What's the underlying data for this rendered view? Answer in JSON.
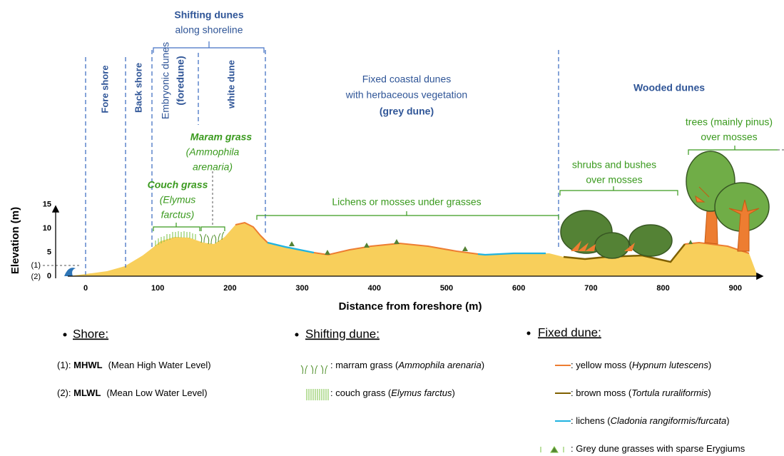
{
  "header": {
    "shifting_title": "Shifting dunes",
    "shifting_sub": "along shoreline",
    "fixed": [
      "Fixed coastal dunes",
      "with herbaceous vegetation",
      "(grey dune)"
    ],
    "wooded": "Wooded dunes"
  },
  "zones": {
    "fore": "Fore shore",
    "back": "Back shore",
    "embryonic": [
      "Embryonic dunes",
      "(foredune)"
    ],
    "white": "white dune"
  },
  "plants": {
    "maram": {
      "name": "Maram grass",
      "latin": [
        "(Ammophila",
        "arenaria)"
      ]
    },
    "couch": {
      "name": "Couch grass",
      "latin": [
        "(Elymus",
        "farctus)"
      ]
    },
    "lichens": "Lichens or mosses under grasses",
    "shrubs": [
      "shrubs and bushes",
      "over mosses"
    ],
    "trees": [
      "trees (mainly pinus)",
      "over mosses"
    ]
  },
  "axes": {
    "y_label": "Elevation (m)",
    "y_ticks": [
      0,
      5,
      10,
      15
    ],
    "water_levels": [
      "(1)",
      "(2)"
    ],
    "x_label": "Distance from foreshore (m)",
    "x_ticks": [
      0,
      100,
      200,
      300,
      400,
      500,
      600,
      700,
      800,
      900
    ]
  },
  "legend": {
    "shore": {
      "title": "Shore:",
      "items": [
        {
          "id": "(1): ",
          "abbr": "MHWL",
          "desc": "(Mean High Water Level)"
        },
        {
          "id": "(2): ",
          "abbr": "MLWL",
          "desc": "(Mean Low Water Level)"
        }
      ]
    },
    "shifting": {
      "title": "Shifting dune:",
      "items": [
        {
          "text": ": marram grass (",
          "latin": "Ammophila arenaria",
          "end": ")"
        },
        {
          "text": ": couch grass (",
          "latin": "Elymus farctus",
          "end": ")"
        }
      ]
    },
    "fixed": {
      "title": "Fixed dune:",
      "items": [
        {
          "text": ": yellow moss (",
          "latin": "Hypnum lutescens",
          "end": ")"
        },
        {
          "text": ": brown moss (",
          "latin": "Tortula ruraliformis",
          "end": ")"
        },
        {
          "text": ": lichens (",
          "latin": "Cladonia rangiformis/furcata",
          "end": ")"
        },
        {
          "text": ": Grey dune grasses with sparse Erygiums"
        }
      ]
    }
  }
}
